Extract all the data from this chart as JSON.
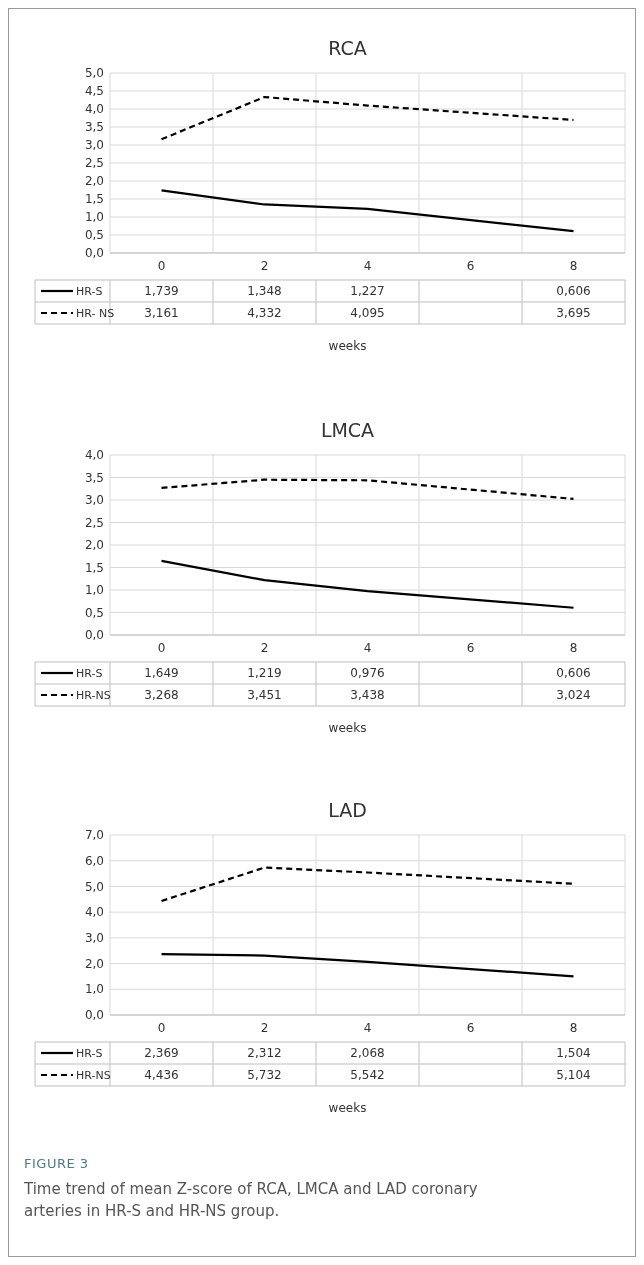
{
  "chart_data": [
    {
      "type": "line",
      "title": "RCA",
      "xlabel": "weeks",
      "categories": [
        "0",
        "2",
        "4",
        "6",
        "8"
      ],
      "ylim": [
        0,
        5
      ],
      "yticks": [
        {
          "value": 0,
          "label": "0,0"
        },
        {
          "value": 0.5,
          "label": "0,5"
        },
        {
          "value": 1,
          "label": "1,0"
        },
        {
          "value": 1.5,
          "label": "1,5"
        },
        {
          "value": 2,
          "label": "2,0"
        },
        {
          "value": 2.5,
          "label": "2,5"
        },
        {
          "value": 3,
          "label": "3,0"
        },
        {
          "value": 3.5,
          "label": "3,5"
        },
        {
          "value": 4,
          "label": "4,0"
        },
        {
          "value": 4.5,
          "label": "4,5"
        },
        {
          "value": 5,
          "label": "5,0"
        }
      ],
      "grid": true,
      "legend": "bottom",
      "series": [
        {
          "name": "HR-S",
          "color": "#000000",
          "line_style": "solid",
          "values": [
            1.739,
            1.348,
            1.227,
            null,
            0.606
          ],
          "value_labels": [
            "1,739",
            "1,348",
            "1,227",
            null,
            "0,606"
          ]
        },
        {
          "name": "HR- NS",
          "color": "#000000",
          "line_style": "dashed",
          "values": [
            3.161,
            4.332,
            4.095,
            null,
            3.695
          ],
          "value_labels": [
            "3,161",
            "4,332",
            "4,095",
            null,
            "3,695"
          ]
        }
      ]
    },
    {
      "type": "line",
      "title": "LMCA",
      "xlabel": "weeks",
      "categories": [
        "0",
        "2",
        "4",
        "6",
        "8"
      ],
      "ylim": [
        0,
        4
      ],
      "yticks": [
        {
          "value": 0,
          "label": "0,0"
        },
        {
          "value": 0.5,
          "label": "0,5"
        },
        {
          "value": 1,
          "label": "1,0"
        },
        {
          "value": 1.5,
          "label": "1,5"
        },
        {
          "value": 2,
          "label": "2,0"
        },
        {
          "value": 2.5,
          "label": "2,5"
        },
        {
          "value": 3,
          "label": "3,0"
        },
        {
          "value": 3.5,
          "label": "3,5"
        },
        {
          "value": 4,
          "label": "4,0"
        }
      ],
      "grid": true,
      "legend": "bottom",
      "series": [
        {
          "name": "HR-S",
          "color": "#000000",
          "line_style": "solid",
          "values": [
            1.649,
            1.219,
            0.976,
            null,
            0.606
          ],
          "value_labels": [
            "1,649",
            "1,219",
            "0,976",
            null,
            "0,606"
          ]
        },
        {
          "name": "HR-NS",
          "color": "#000000",
          "line_style": "dashed",
          "values": [
            3.268,
            3.451,
            3.438,
            null,
            3.024
          ],
          "value_labels": [
            "3,268",
            "3,451",
            "3,438",
            null,
            "3,024"
          ]
        }
      ]
    },
    {
      "type": "line",
      "title": "LAD",
      "xlabel": "weeks",
      "categories": [
        "0",
        "2",
        "4",
        "6",
        "8"
      ],
      "ylim": [
        0,
        7
      ],
      "yticks": [
        {
          "value": 0,
          "label": "0,0"
        },
        {
          "value": 1,
          "label": "1,0"
        },
        {
          "value": 2,
          "label": "2,0"
        },
        {
          "value": 3,
          "label": "3,0"
        },
        {
          "value": 4,
          "label": "4,0"
        },
        {
          "value": 5,
          "label": "5,0"
        },
        {
          "value": 6,
          "label": "6,0"
        },
        {
          "value": 7,
          "label": "7,0"
        }
      ],
      "grid": true,
      "legend": "bottom",
      "series": [
        {
          "name": "HR-S",
          "color": "#000000",
          "line_style": "solid",
          "values": [
            2.369,
            2.312,
            2.068,
            null,
            1.504
          ],
          "value_labels": [
            "2,369",
            "2,312",
            "2,068",
            null,
            "1,504"
          ]
        },
        {
          "name": "HR-NS",
          "color": "#000000",
          "line_style": "dashed",
          "values": [
            4.436,
            5.732,
            5.542,
            null,
            5.104
          ],
          "value_labels": [
            "4,436",
            "5,732",
            "5,542",
            null,
            "5,104"
          ]
        }
      ],
      "annotations": [
        "FIGURE 3",
        "Time trend of mean Z-score of RCA, LMCA and LAD coronary arteries in HR-S and HR-NS group."
      ]
    }
  ]
}
